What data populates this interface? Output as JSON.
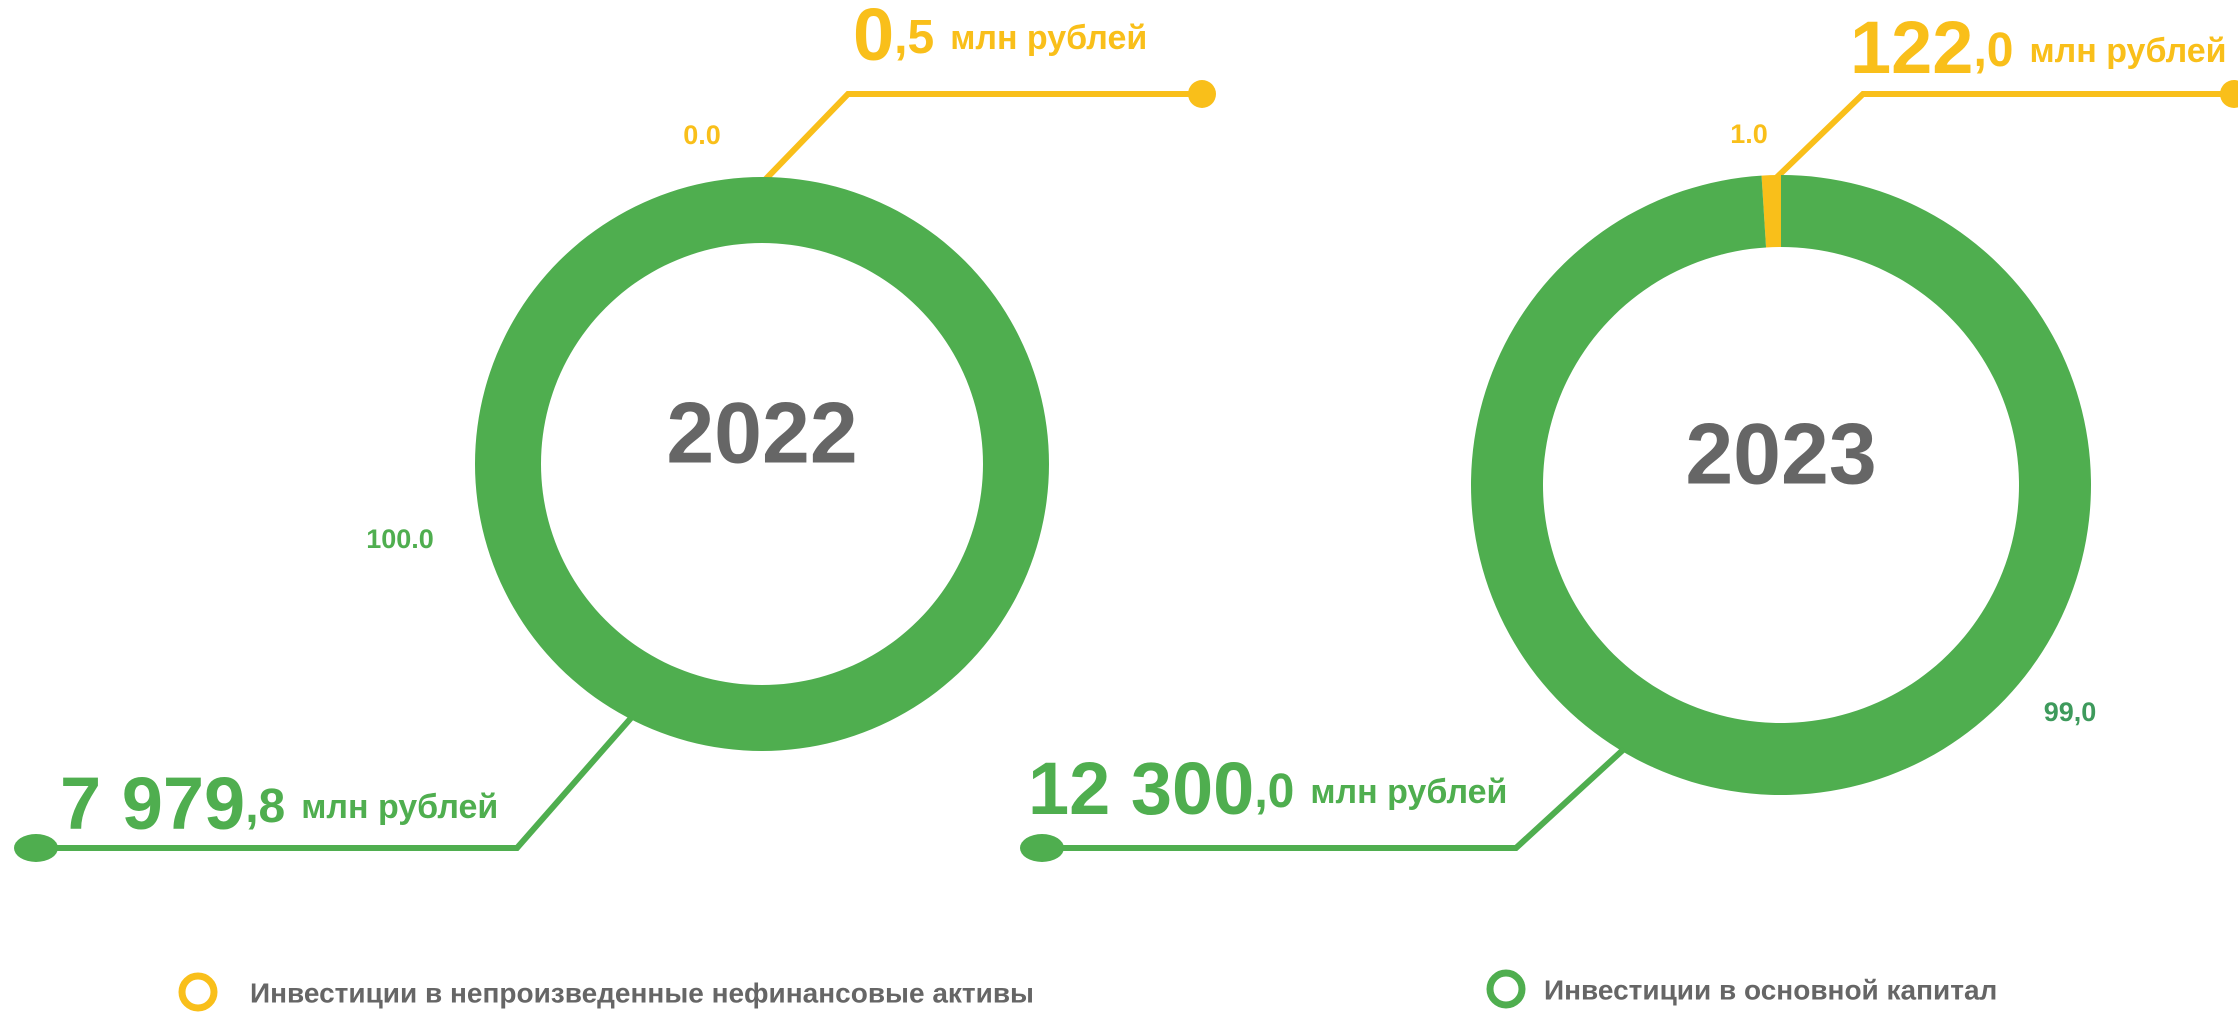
{
  "chart_data": [
    {
      "type": "donut",
      "title": "2022",
      "values": [
        0.0,
        100.0
      ],
      "value_labels": [
        "0.0",
        "100.0"
      ],
      "colors": [
        "#f9bf1a",
        "#4fae4f"
      ],
      "label_colors": [
        "#f9bf1a",
        "#4fae4f"
      ],
      "amounts": [
        0.5,
        7979.8
      ],
      "amount_labels": [
        "0,5",
        "7 979,8"
      ],
      "unit": "млн рублей"
    },
    {
      "type": "donut",
      "title": "2023",
      "values": [
        1.0,
        99.0
      ],
      "value_labels": [
        "1.0",
        "99,0"
      ],
      "colors": [
        "#f9bf1a",
        "#4fae4f"
      ],
      "label_colors": [
        "#f9bf1a",
        "#3e9a5c"
      ],
      "amounts": [
        122.0,
        12300.0
      ],
      "amount_labels": [
        "122,0",
        "12 300,0"
      ],
      "unit": "млн рублей"
    }
  ],
  "legend": [
    {
      "name": "Инвестиции в непроизведенные нефинансовые активы",
      "color": "#f9bf1a"
    },
    {
      "name": "Инвестиции в основной капитал",
      "color": "#4fae4f"
    }
  ]
}
